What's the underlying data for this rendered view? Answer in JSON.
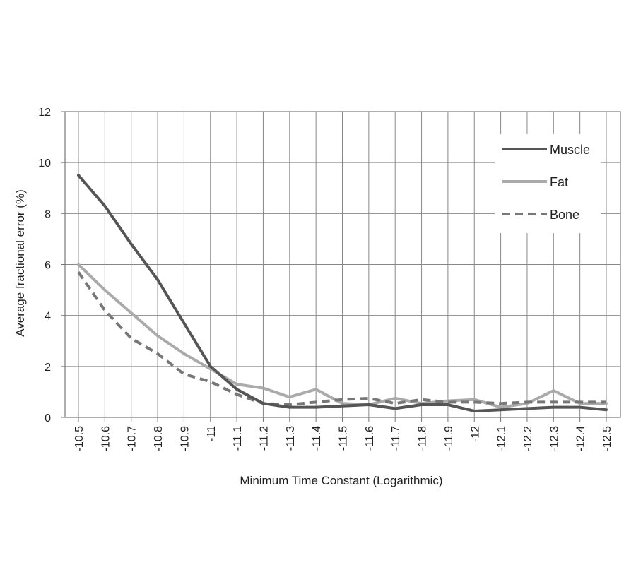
{
  "chart_data": {
    "type": "line",
    "title": "",
    "xlabel": "Minimum Time Constant (Logarithmic)",
    "ylabel": "Average fractional error (%)",
    "ylim": [
      0,
      12
    ],
    "yticks": [
      0,
      2,
      4,
      6,
      8,
      10,
      12
    ],
    "grid": true,
    "legend_position": "top-right",
    "categories": [
      "-10.5",
      "-10.6",
      "-10.7",
      "-10.8",
      "-10.9",
      "-11",
      "-11.1",
      "-11.2",
      "-11.3",
      "-11.4",
      "-11.5",
      "-11.6",
      "-11.7",
      "-11.8",
      "-11.9",
      "-12",
      "-12.1",
      "-12.2",
      "-12.3",
      "-12.4",
      "-12.5"
    ],
    "series": [
      {
        "name": "Muscle",
        "color": "#555555",
        "style": "solid",
        "values": [
          9.5,
          8.3,
          6.8,
          5.4,
          3.7,
          2.0,
          1.1,
          0.55,
          0.4,
          0.4,
          0.45,
          0.5,
          0.35,
          0.5,
          0.5,
          0.25,
          0.3,
          0.35,
          0.4,
          0.4,
          0.3
        ]
      },
      {
        "name": "Fat",
        "color": "#aaaaaa",
        "style": "solid",
        "values": [
          6.0,
          5.0,
          4.1,
          3.2,
          2.5,
          1.9,
          1.3,
          1.15,
          0.8,
          1.1,
          0.55,
          0.5,
          0.75,
          0.55,
          0.65,
          0.7,
          0.4,
          0.55,
          1.05,
          0.55,
          0.55
        ]
      },
      {
        "name": "Bone",
        "color": "#777777",
        "style": "dashed",
        "values": [
          5.7,
          4.2,
          3.1,
          2.5,
          1.7,
          1.4,
          0.9,
          0.55,
          0.5,
          0.6,
          0.7,
          0.75,
          0.55,
          0.7,
          0.6,
          0.6,
          0.55,
          0.6,
          0.6,
          0.6,
          0.6
        ]
      }
    ]
  }
}
